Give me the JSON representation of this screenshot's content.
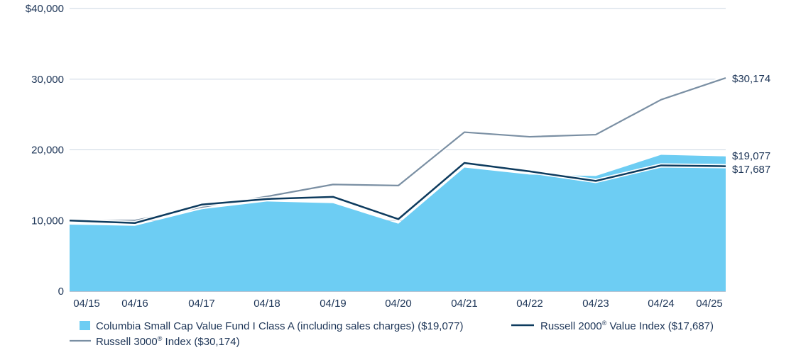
{
  "chart_data": {
    "type": "area",
    "x": [
      "04/15",
      "04/16",
      "04/17",
      "04/18",
      "04/19",
      "04/20",
      "04/21",
      "04/22",
      "04/23",
      "04/24",
      "04/25"
    ],
    "y_ticks": [
      0,
      10000,
      20000,
      30000,
      40000
    ],
    "y_tick_labels": [
      "0",
      "10,000",
      "20,000",
      "30,000",
      "$40,000"
    ],
    "ylim": [
      0,
      40000
    ],
    "grid": true,
    "legend_position": "bottom",
    "series": [
      {
        "name": "Columbia Small Cap Value Fund I Class A (including sales charges) ($19,077)",
        "type": "area",
        "color": "#6dcdf3",
        "values": [
          9425,
          9250,
          11600,
          12700,
          12450,
          9550,
          17500,
          16500,
          16300,
          19300,
          19077
        ],
        "end_label": "$19,077"
      },
      {
        "name_prefix": "Russell 2000",
        "name_suffix": " Value Index ($17,687)",
        "type": "line",
        "color": "#0d3b5e",
        "values": [
          10000,
          9650,
          12250,
          13050,
          13350,
          10200,
          18150,
          16950,
          15600,
          17800,
          17687
        ],
        "end_label": "$17,687"
      },
      {
        "name_prefix": "Russell 3000",
        "name_suffix": " Index ($30,174)",
        "type": "line",
        "color": "#7a8fa3",
        "values": [
          10000,
          10000,
          11900,
          13400,
          15100,
          14950,
          22500,
          21850,
          22150,
          27100,
          30174
        ],
        "end_label": "$30,174"
      }
    ],
    "registered_mark": "®"
  }
}
